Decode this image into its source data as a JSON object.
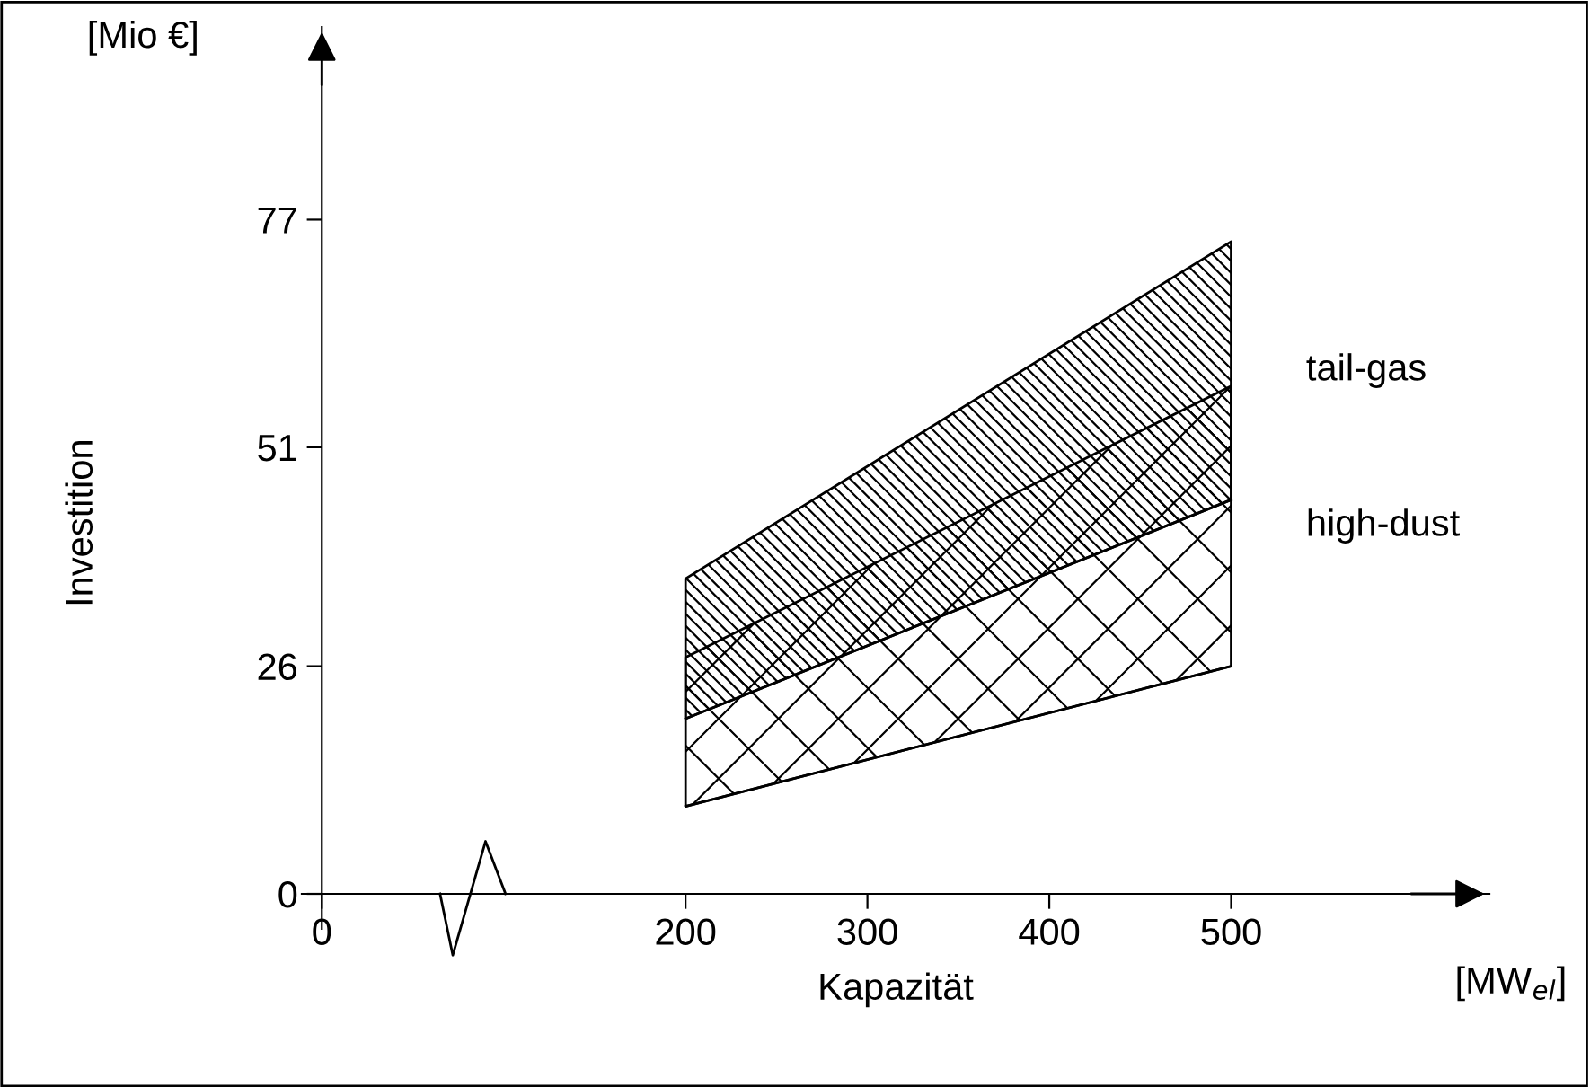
{
  "chart_data": {
    "type": "line",
    "xlabel": "Kapazität",
    "ylabel": "Investition",
    "annotations": [
      "[Mio €]",
      "[MW$_{el}$]"
    ],
    "x": [
      200,
      500
    ],
    "series": [
      {
        "name": "tail-gas",
        "color": "#000000",
        "values": [
          20,
          45
        ],
        "lower": [
          20,
          45
        ],
        "upper": [
          36,
          74.5
        ]
      },
      {
        "name": "high-dust",
        "color": "#000000",
        "values": [
          10,
          26
        ],
        "lower": [
          10,
          26
        ],
        "upper": [
          27,
          58
        ]
      }
    ],
    "xlim": [
      -11,
      642
    ],
    "xticks": [
      0,
      200,
      300,
      400,
      500
    ],
    "ylim": [
      -4,
      99
    ],
    "yticks": [
      0,
      26,
      51,
      77
    ],
    "grid": false,
    "legend": false
  }
}
